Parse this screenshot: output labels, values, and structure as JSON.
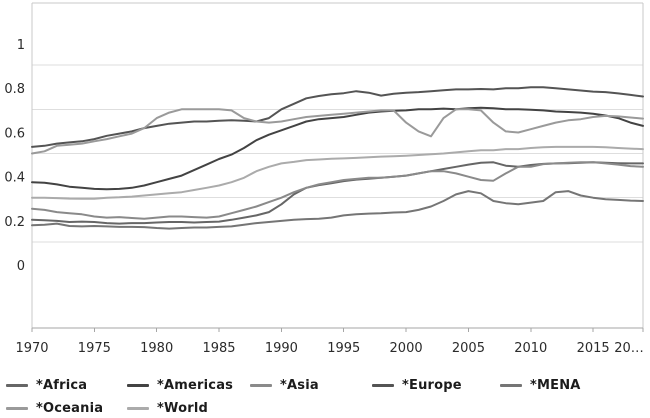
{
  "chart_data": {
    "type": "line",
    "title": "",
    "xlabel": "",
    "ylabel": "",
    "grid": "horizontal-only",
    "legend_position": "bottom",
    "ylim": [
      -0.29,
      1.18
    ],
    "xlim": [
      1970,
      2019.6
    ],
    "x": [
      1970,
      1971,
      1972,
      1973,
      1974,
      1975,
      1976,
      1977,
      1978,
      1979,
      1980,
      1981,
      1982,
      1983,
      1984,
      1985,
      1986,
      1987,
      1988,
      1989,
      1990,
      1991,
      1992,
      1993,
      1994,
      1995,
      1996,
      1997,
      1998,
      1999,
      2000,
      2001,
      2002,
      2003,
      2004,
      2005,
      2006,
      2007,
      2008,
      2009,
      2010,
      2011,
      2012,
      2013,
      2014,
      2015,
      2016,
      2017,
      2018,
      2019
    ],
    "series": [
      {
        "name": "Africa",
        "legend_label": "*Africa",
        "color": "#666666",
        "values": [
          0.2,
          0.198,
          0.195,
          0.19,
          0.192,
          0.19,
          0.185,
          0.183,
          0.185,
          0.185,
          0.188,
          0.19,
          0.19,
          0.188,
          0.19,
          0.192,
          0.2,
          0.21,
          0.22,
          0.235,
          0.27,
          0.315,
          0.345,
          0.357,
          0.365,
          0.375,
          0.382,
          0.386,
          0.39,
          0.395,
          0.4,
          0.41,
          0.42,
          0.43,
          0.44,
          0.45,
          0.458,
          0.46,
          0.445,
          0.44,
          0.448,
          0.453,
          0.455,
          0.456,
          0.458,
          0.46,
          0.458,
          0.456,
          0.455,
          0.455
        ]
      },
      {
        "name": "Americas",
        "legend_label": "*Americas",
        "color": "#434343",
        "values": [
          0.37,
          0.368,
          0.36,
          0.35,
          0.345,
          0.34,
          0.338,
          0.34,
          0.345,
          0.355,
          0.37,
          0.385,
          0.4,
          0.425,
          0.45,
          0.475,
          0.495,
          0.525,
          0.56,
          0.585,
          0.605,
          0.625,
          0.645,
          0.655,
          0.66,
          0.665,
          0.675,
          0.685,
          0.69,
          0.693,
          0.695,
          0.7,
          0.7,
          0.703,
          0.7,
          0.705,
          0.707,
          0.705,
          0.7,
          0.7,
          0.698,
          0.695,
          0.69,
          0.688,
          0.685,
          0.68,
          0.672,
          0.66,
          0.64,
          0.625
        ]
      },
      {
        "name": "Asia",
        "legend_label": "*Asia",
        "color": "#8a8a8a",
        "values": [
          0.25,
          0.245,
          0.235,
          0.23,
          0.225,
          0.215,
          0.21,
          0.212,
          0.208,
          0.205,
          0.21,
          0.215,
          0.215,
          0.212,
          0.21,
          0.215,
          0.23,
          0.245,
          0.26,
          0.28,
          0.3,
          0.325,
          0.345,
          0.36,
          0.37,
          0.38,
          0.385,
          0.39,
          0.39,
          0.395,
          0.4,
          0.41,
          0.42,
          0.42,
          0.41,
          0.395,
          0.38,
          0.377,
          0.41,
          0.44,
          0.44,
          0.452,
          0.455,
          0.458,
          0.46,
          0.46,
          0.455,
          0.45,
          0.443,
          0.44
        ]
      },
      {
        "name": "Europe",
        "legend_label": "*Europe",
        "color": "#545454",
        "values": [
          0.53,
          0.535,
          0.545,
          0.55,
          0.555,
          0.565,
          0.58,
          0.59,
          0.6,
          0.615,
          0.625,
          0.635,
          0.64,
          0.645,
          0.645,
          0.648,
          0.65,
          0.648,
          0.645,
          0.66,
          0.7,
          0.725,
          0.75,
          0.76,
          0.768,
          0.773,
          0.782,
          0.775,
          0.762,
          0.77,
          0.775,
          0.778,
          0.782,
          0.786,
          0.79,
          0.79,
          0.792,
          0.79,
          0.795,
          0.795,
          0.8,
          0.8,
          0.795,
          0.79,
          0.785,
          0.78,
          0.778,
          0.772,
          0.765,
          0.758
        ]
      },
      {
        "name": "MENA",
        "legend_label": "*MENA",
        "color": "#757575",
        "values": [
          0.175,
          0.178,
          0.183,
          0.172,
          0.17,
          0.172,
          0.17,
          0.168,
          0.168,
          0.167,
          0.163,
          0.16,
          0.163,
          0.165,
          0.165,
          0.168,
          0.17,
          0.178,
          0.185,
          0.19,
          0.195,
          0.2,
          0.203,
          0.205,
          0.21,
          0.22,
          0.225,
          0.228,
          0.23,
          0.233,
          0.235,
          0.245,
          0.26,
          0.285,
          0.315,
          0.33,
          0.32,
          0.285,
          0.275,
          0.27,
          0.278,
          0.285,
          0.325,
          0.33,
          0.31,
          0.3,
          0.293,
          0.29,
          0.287,
          0.285
        ]
      },
      {
        "name": "Oceania",
        "legend_label": "*Oceania",
        "color": "#9a9a9a",
        "values": [
          0.5,
          0.51,
          0.535,
          0.54,
          0.545,
          0.555,
          0.565,
          0.578,
          0.59,
          0.615,
          0.66,
          0.685,
          0.7,
          0.7,
          0.7,
          0.7,
          0.695,
          0.66,
          0.645,
          0.64,
          0.645,
          0.655,
          0.665,
          0.67,
          0.675,
          0.68,
          0.685,
          0.69,
          0.695,
          0.695,
          0.64,
          0.6,
          0.578,
          0.66,
          0.7,
          0.7,
          0.695,
          0.64,
          0.6,
          0.595,
          0.61,
          0.625,
          0.64,
          0.65,
          0.655,
          0.665,
          0.67,
          0.668,
          0.663,
          0.658
        ]
      },
      {
        "name": "World",
        "legend_label": "*World",
        "color": "#ababab",
        "values": [
          0.3,
          0.3,
          0.298,
          0.296,
          0.295,
          0.295,
          0.3,
          0.302,
          0.305,
          0.31,
          0.315,
          0.32,
          0.325,
          0.335,
          0.345,
          0.355,
          0.37,
          0.39,
          0.42,
          0.44,
          0.455,
          0.462,
          0.47,
          0.473,
          0.476,
          0.478,
          0.48,
          0.483,
          0.486,
          0.488,
          0.49,
          0.493,
          0.497,
          0.5,
          0.505,
          0.51,
          0.515,
          0.515,
          0.52,
          0.52,
          0.525,
          0.528,
          0.53,
          0.53,
          0.53,
          0.53,
          0.528,
          0.525,
          0.522,
          0.52
        ]
      }
    ],
    "y_ticks": [
      {
        "label": "1",
        "value": 1.0
      },
      {
        "label": "0.8",
        "value": 0.8
      },
      {
        "label": "0.6",
        "value": 0.6
      },
      {
        "label": "0.4",
        "value": 0.4
      },
      {
        "label": "0.2",
        "value": 0.2
      },
      {
        "label": "0",
        "value": 0.0
      }
    ],
    "gridline_values": [
      0.9,
      0.7,
      0.5,
      0.3,
      0.1
    ],
    "x_ticks": [
      {
        "label": "1970",
        "year": 1970
      },
      {
        "label": "1975",
        "year": 1975
      },
      {
        "label": "1980",
        "year": 1980
      },
      {
        "label": "1985",
        "year": 1985
      },
      {
        "label": "1990",
        "year": 1990
      },
      {
        "label": "1995",
        "year": 1995
      },
      {
        "label": "2000",
        "year": 2000
      },
      {
        "label": "2005",
        "year": 2005
      },
      {
        "label": "2010",
        "year": 2010
      },
      {
        "label": "2015",
        "year": 2015
      },
      {
        "label": "20…",
        "year": 2020
      }
    ]
  },
  "colors": {
    "background": "#ffffff",
    "gridline": "#dedede",
    "plot_border": "#c9c9c9",
    "axis_line": "#a6a6a6",
    "tick_label": "#2b2b2b",
    "legend_text": "#1c1c1c"
  }
}
